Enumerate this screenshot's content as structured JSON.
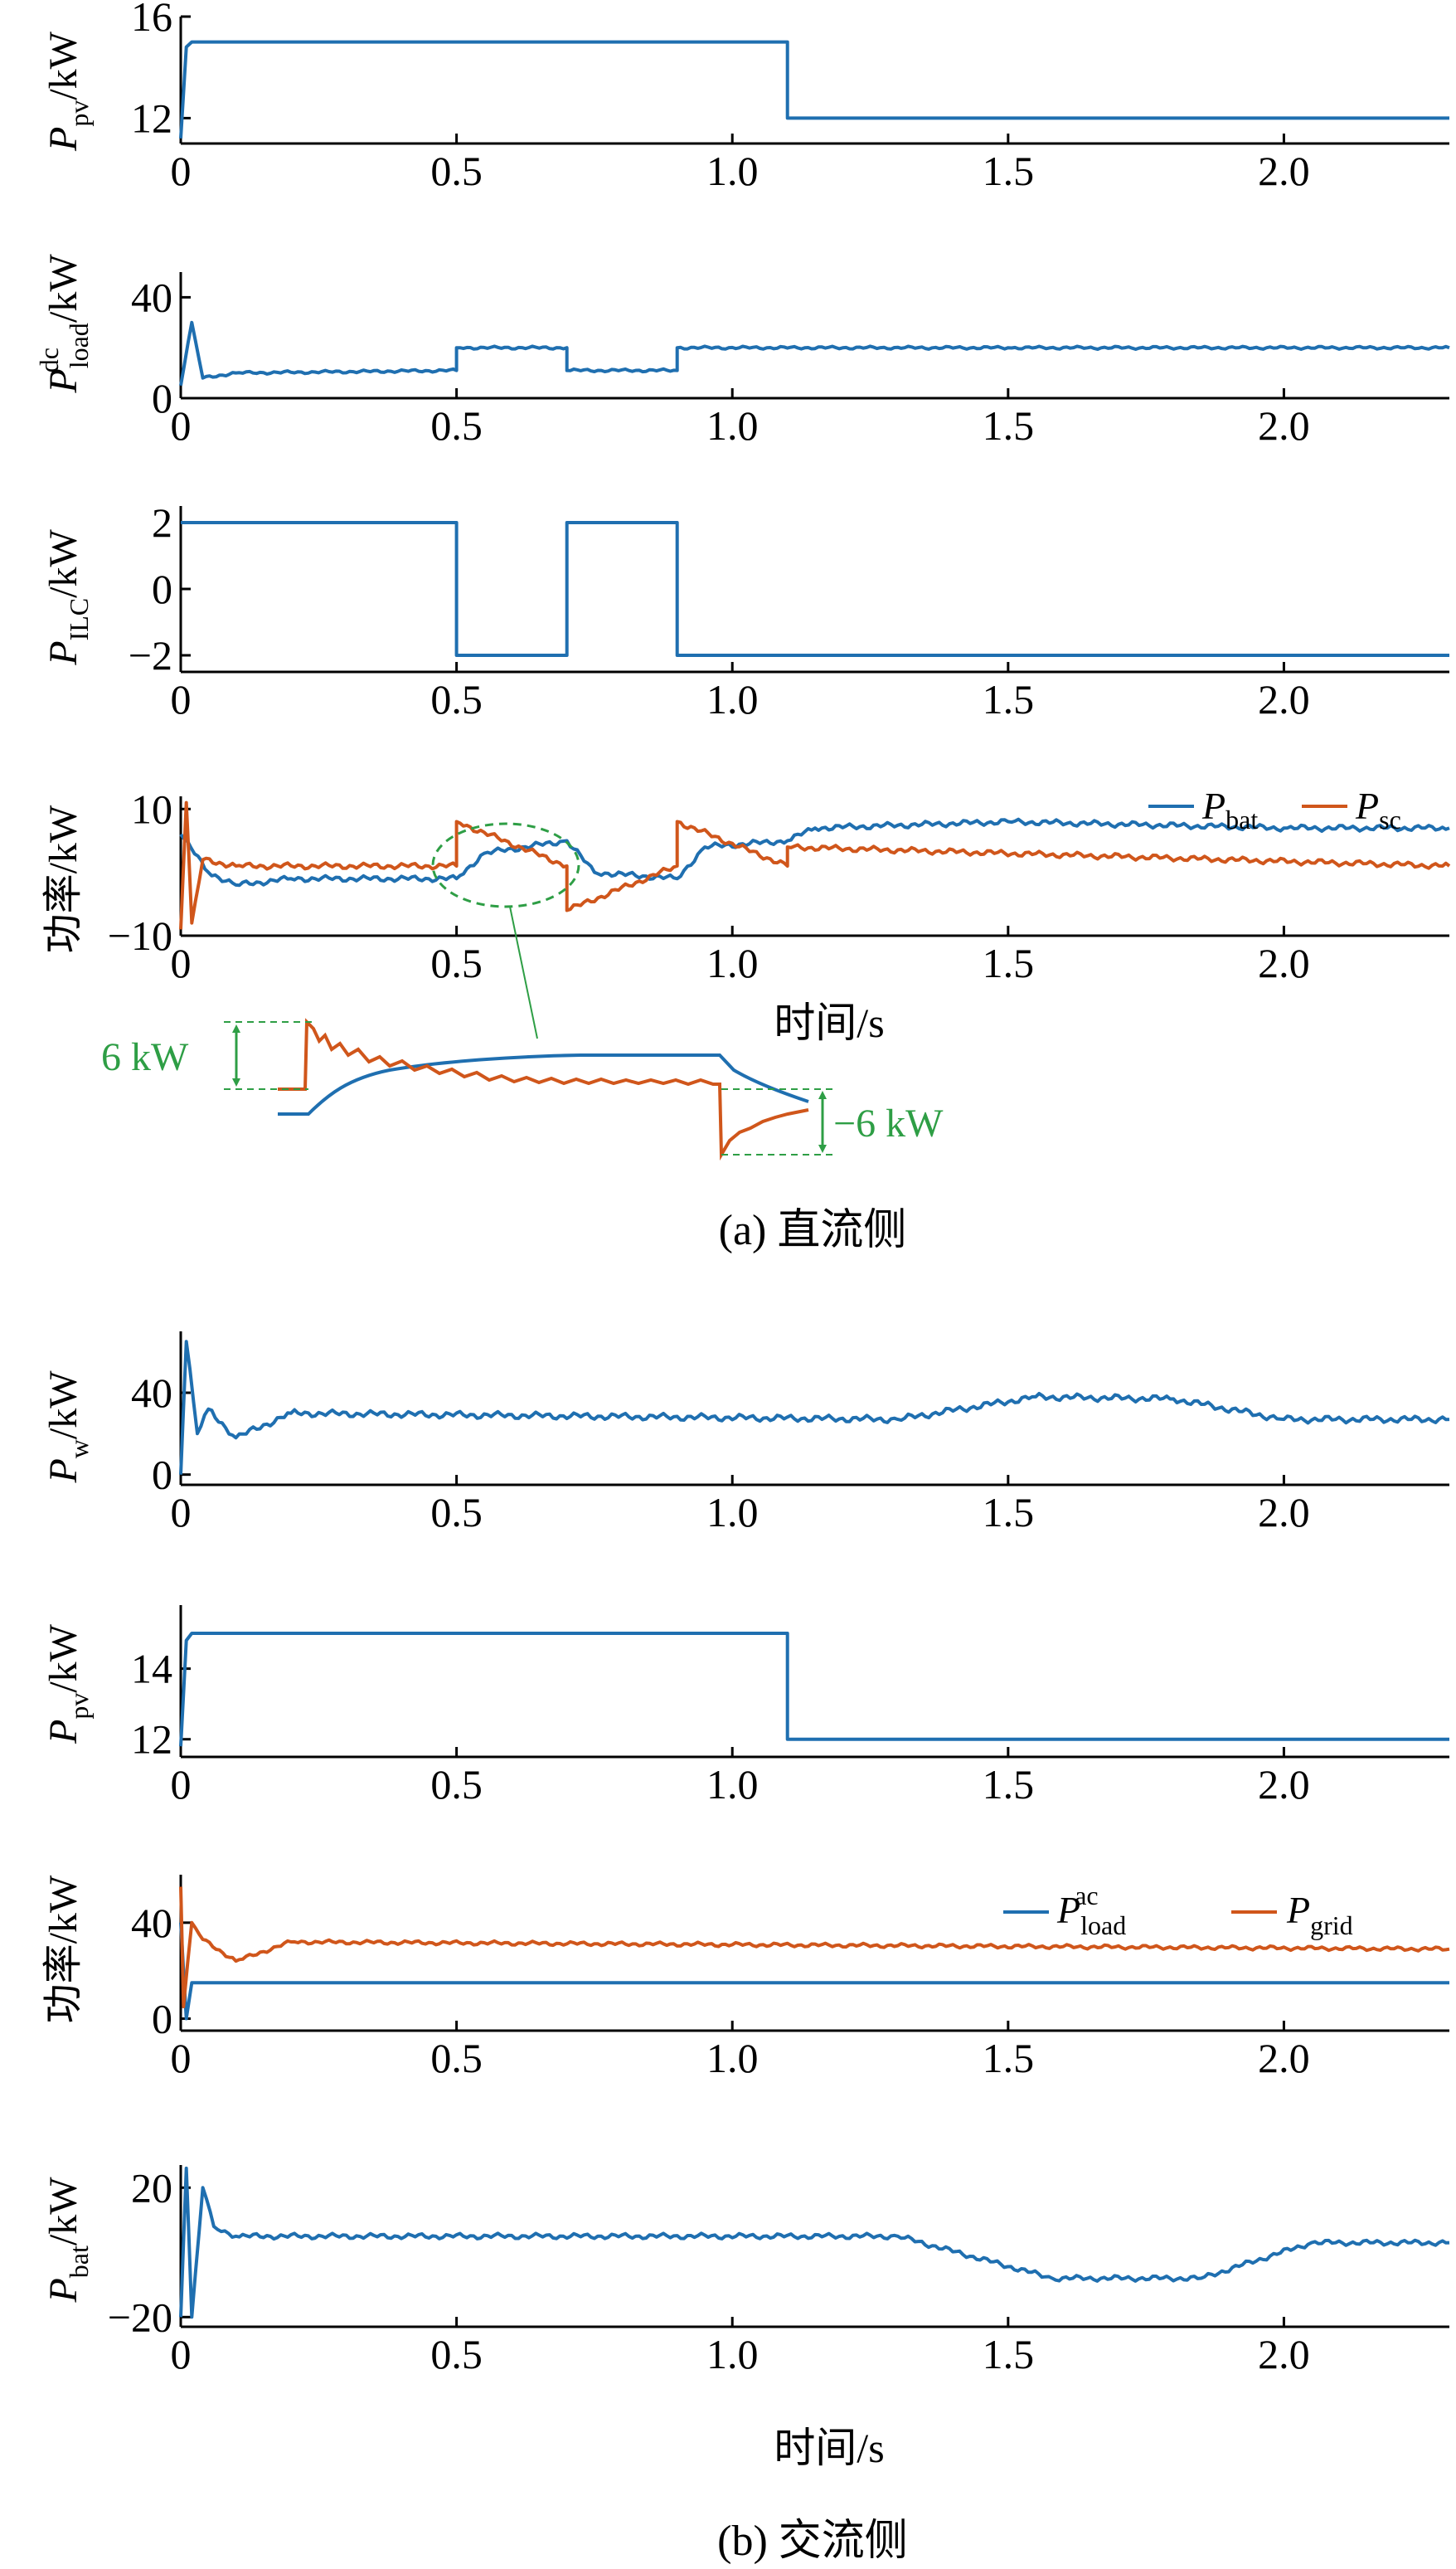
{
  "colors": {
    "blue": "#1f6fb0",
    "orange": "#d0561b",
    "green": "#2e9e45",
    "axis": "#000000"
  },
  "captions": {
    "a": "(a)  直流侧",
    "b": "(b)  交流侧"
  },
  "xlabel": "时间/s",
  "labels": {
    "ppv_main": "P",
    "ppv_sub": "pv",
    "unit_kw": "/kW",
    "pload_main": "P",
    "pload_sub": "load",
    "pload_sup": "dc",
    "pilc_main": "P",
    "pilc_sub": "ILC",
    "power_cn": "功率/kW",
    "pw_main": "P",
    "pw_sub": "w",
    "pac_main": "P",
    "pac_sub": "load",
    "pac_sup": "ac",
    "pgrid_main": "P",
    "pgrid_sub": "grid",
    "pbat_main": "P",
    "pbat_sub": "bat",
    "psc_main": "P",
    "psc_sub": "sc"
  },
  "inset": {
    "label_up": "6 kW",
    "label_down": "−6 kW"
  },
  "chart_data": [
    {
      "id": "a1",
      "type": "line",
      "xlim": [
        0,
        2.3
      ],
      "ylim": [
        11,
        16
      ],
      "xticks": [
        "0",
        "0.5",
        "1.0",
        "1.5",
        "2.0"
      ],
      "yticks": [
        "12",
        "16"
      ],
      "series": [
        {
          "color": "blue",
          "x": [
            0,
            0.01,
            0.02,
            0.05,
            1.1,
            1.1,
            1.13,
            2.3
          ],
          "y": [
            11.2,
            14.8,
            15.0,
            15.0,
            15.0,
            12.0,
            12.0,
            12.0
          ]
        }
      ]
    },
    {
      "id": "a2",
      "type": "line",
      "xlim": [
        0,
        2.3
      ],
      "ylim": [
        0,
        50
      ],
      "xticks": [
        "0",
        "0.5",
        "1.0",
        "1.5",
        "2.0"
      ],
      "yticks": [
        "0",
        "40"
      ],
      "series": [
        {
          "color": "blue",
          "x": [
            0,
            0.02,
            0.04,
            0.1,
            0.5,
            0.5,
            0.7,
            0.7,
            0.9,
            0.9,
            1.5,
            2.3
          ],
          "y": [
            5,
            30,
            8,
            10,
            11,
            20,
            20,
            11,
            11,
            20,
            20,
            20
          ]
        }
      ]
    },
    {
      "id": "a3",
      "type": "line",
      "xlim": [
        0,
        2.3
      ],
      "ylim": [
        -2.5,
        2.5
      ],
      "xticks": [
        "0",
        "0.5",
        "1.0",
        "1.5",
        "2.0"
      ],
      "yticks": [
        "−2",
        "0",
        "2"
      ],
      "series": [
        {
          "color": "blue",
          "x": [
            0,
            0.5,
            0.5,
            0.7,
            0.7,
            0.9,
            0.9,
            2.3
          ],
          "y": [
            2,
            2,
            -2,
            -2,
            2,
            2,
            -2,
            -2
          ]
        }
      ]
    },
    {
      "id": "a4",
      "type": "line",
      "xlim": [
        0,
        2.3
      ],
      "ylim": [
        -10,
        12
      ],
      "xticks": [
        "0",
        "0.5",
        "1.0",
        "1.5",
        "2.0"
      ],
      "yticks": [
        "−10",
        "10"
      ],
      "series": [
        {
          "color": "blue",
          "x": [
            0,
            0.05,
            0.1,
            0.2,
            0.5,
            0.55,
            0.7,
            0.75,
            0.9,
            0.95,
            1.1,
            1.15,
            1.5,
            2.0,
            2.3
          ],
          "y": [
            6,
            0,
            -2,
            -1,
            -1,
            3,
            5,
            0,
            -1,
            4,
            5,
            7,
            8,
            7,
            7
          ]
        },
        {
          "color": "orange",
          "x": [
            0,
            0.01,
            0.02,
            0.04,
            0.1,
            0.5,
            0.5,
            0.7,
            0.7,
            0.9,
            0.9,
            1.1,
            1.1,
            2.3
          ],
          "y": [
            -9,
            11,
            -8,
            2,
            1,
            1,
            8,
            1,
            -6,
            1,
            8,
            1,
            4,
            1
          ]
        }
      ]
    },
    {
      "id": "b1",
      "type": "line",
      "xlim": [
        0,
        2.3
      ],
      "ylim": [
        -5,
        70
      ],
      "xticks": [
        "0",
        "0.5",
        "1.0",
        "1.5",
        "2.0"
      ],
      "yticks": [
        "0",
        "40"
      ],
      "series": [
        {
          "color": "blue",
          "x": [
            0,
            0.01,
            0.03,
            0.05,
            0.1,
            0.2,
            1.3,
            1.55,
            1.8,
            2.0,
            2.3
          ],
          "y": [
            0,
            65,
            20,
            32,
            18,
            30,
            27,
            38,
            37,
            27,
            27
          ]
        }
      ]
    },
    {
      "id": "b2",
      "type": "line",
      "xlim": [
        0,
        2.3
      ],
      "ylim": [
        11.5,
        15.8
      ],
      "xticks": [
        "0",
        "0.5",
        "1.0",
        "1.5",
        "2.0"
      ],
      "yticks": [
        "12",
        "14"
      ],
      "series": [
        {
          "color": "blue",
          "x": [
            0,
            0.01,
            0.02,
            0.05,
            1.1,
            1.1,
            1.13,
            2.3
          ],
          "y": [
            11.8,
            14.8,
            15.0,
            15.0,
            15.0,
            12.0,
            12.0,
            12.0
          ]
        }
      ]
    },
    {
      "id": "b3",
      "type": "line",
      "xlim": [
        0,
        2.3
      ],
      "ylim": [
        -5,
        60
      ],
      "xticks": [
        "0",
        "0.5",
        "1.0",
        "1.5",
        "2.0"
      ],
      "yticks": [
        "0",
        "40"
      ],
      "series": [
        {
          "color": "blue",
          "x": [
            0,
            0.01,
            0.02,
            2.3
          ],
          "y": [
            40,
            0,
            15,
            15
          ]
        },
        {
          "color": "orange",
          "x": [
            0,
            0.005,
            0.02,
            0.04,
            0.1,
            0.2,
            2.3
          ],
          "y": [
            55,
            5,
            40,
            33,
            24,
            32,
            29
          ]
        }
      ]
    },
    {
      "id": "b4",
      "type": "line",
      "xlim": [
        0,
        2.3
      ],
      "ylim": [
        -23,
        27
      ],
      "xticks": [
        "0",
        "0.5",
        "1.0",
        "1.5",
        "2.0"
      ],
      "yticks": [
        "−20",
        "20"
      ],
      "series": [
        {
          "color": "blue",
          "x": [
            0,
            0.01,
            0.02,
            0.04,
            0.06,
            0.1,
            1.3,
            1.58,
            1.85,
            2.05,
            2.3
          ],
          "y": [
            -20,
            26,
            -20,
            20,
            8,
            5,
            5,
            -8,
            -8,
            3,
            3
          ]
        }
      ]
    }
  ]
}
